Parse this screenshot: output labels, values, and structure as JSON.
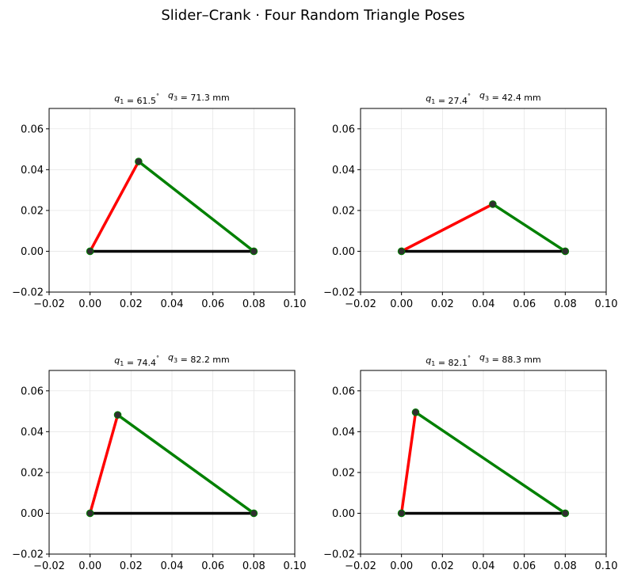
{
  "figure": {
    "suptitle": "Slider–Crank  ·  Four Random Triangle Poses"
  },
  "chart_data": [
    {
      "type": "line",
      "title_q1": "61.5",
      "title_q3": "71.3",
      "xlim": [
        -0.02,
        0.1
      ],
      "ylim": [
        -0.02,
        0.07
      ],
      "xticks": [
        "−0.02",
        "0.00",
        "0.02",
        "0.04",
        "0.06",
        "0.08",
        "0.10"
      ],
      "yticks": [
        "−0.02",
        "0.00",
        "0.02",
        "0.04",
        "0.06"
      ],
      "grid": true,
      "series": [
        {
          "color": "#ff0000",
          "x": [
            0.0,
            0.0237
          ],
          "y": [
            0.0,
            0.044
          ]
        },
        {
          "color": "#008000",
          "x": [
            0.0237,
            0.08
          ],
          "y": [
            0.044,
            0.0
          ]
        },
        {
          "color": "#000000",
          "x": [
            0.0,
            0.08
          ],
          "y": [
            0.0,
            0.0
          ]
        }
      ],
      "points": {
        "x": [
          0.0,
          0.0237,
          0.08
        ],
        "y": [
          0.0,
          0.044,
          0.0
        ]
      }
    },
    {
      "type": "line",
      "title_q1": "27.4",
      "title_q3": "42.4",
      "xlim": [
        -0.02,
        0.1
      ],
      "ylim": [
        -0.02,
        0.07
      ],
      "xticks": [
        "−0.02",
        "0.00",
        "0.02",
        "0.04",
        "0.06",
        "0.08",
        "0.10"
      ],
      "yticks": [
        "−0.02",
        "0.00",
        "0.02",
        "0.04",
        "0.06"
      ],
      "grid": true,
      "series": [
        {
          "color": "#ff0000",
          "x": [
            0.0,
            0.0446
          ],
          "y": [
            0.0,
            0.0231
          ]
        },
        {
          "color": "#008000",
          "x": [
            0.0446,
            0.08
          ],
          "y": [
            0.0231,
            0.0
          ]
        },
        {
          "color": "#000000",
          "x": [
            0.0,
            0.08
          ],
          "y": [
            0.0,
            0.0
          ]
        }
      ],
      "points": {
        "x": [
          0.0,
          0.0446,
          0.08
        ],
        "y": [
          0.0,
          0.0231,
          0.0
        ]
      }
    },
    {
      "type": "line",
      "title_q1": "74.4",
      "title_q3": "82.2",
      "xlim": [
        -0.02,
        0.1
      ],
      "ylim": [
        -0.02,
        0.07
      ],
      "xticks": [
        "−0.02",
        "0.00",
        "0.02",
        "0.04",
        "0.06",
        "0.08",
        "0.10"
      ],
      "yticks": [
        "−0.02",
        "0.00",
        "0.02",
        "0.04",
        "0.06"
      ],
      "grid": true,
      "series": [
        {
          "color": "#ff0000",
          "x": [
            0.0,
            0.0135
          ],
          "y": [
            0.0,
            0.0482
          ]
        },
        {
          "color": "#008000",
          "x": [
            0.0135,
            0.08
          ],
          "y": [
            0.0482,
            0.0
          ]
        },
        {
          "color": "#000000",
          "x": [
            0.0,
            0.08
          ],
          "y": [
            0.0,
            0.0
          ]
        }
      ],
      "points": {
        "x": [
          0.0,
          0.0135,
          0.08
        ],
        "y": [
          0.0,
          0.0482,
          0.0
        ]
      }
    },
    {
      "type": "line",
      "title_q1": "82.1",
      "title_q3": "88.3",
      "xlim": [
        -0.02,
        0.1
      ],
      "ylim": [
        -0.02,
        0.07
      ],
      "xticks": [
        "−0.02",
        "0.00",
        "0.02",
        "0.04",
        "0.06",
        "0.08",
        "0.10"
      ],
      "yticks": [
        "−0.02",
        "0.00",
        "0.02",
        "0.04",
        "0.06"
      ],
      "grid": true,
      "series": [
        {
          "color": "#ff0000",
          "x": [
            0.0,
            0.0069
          ],
          "y": [
            0.0,
            0.0495
          ]
        },
        {
          "color": "#008000",
          "x": [
            0.0069,
            0.08
          ],
          "y": [
            0.0495,
            0.0
          ]
        },
        {
          "color": "#000000",
          "x": [
            0.0,
            0.08
          ],
          "y": [
            0.0,
            0.0
          ]
        }
      ],
      "points": {
        "x": [
          0.0,
          0.0069,
          0.08
        ],
        "y": [
          0.0,
          0.0495,
          0.0
        ]
      }
    }
  ]
}
